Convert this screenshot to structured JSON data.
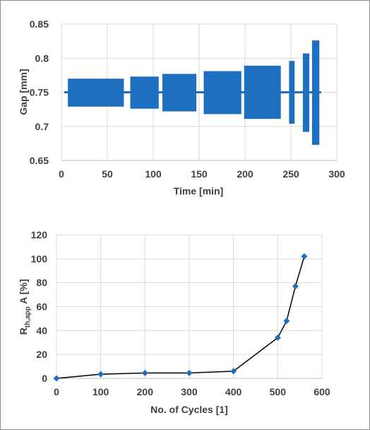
{
  "chart_data": [
    {
      "type": "bar",
      "xlabel": "Time [min]",
      "ylabel": "Gap [mm]",
      "xlim": [
        0,
        300
      ],
      "ylim": [
        0.65,
        0.85
      ],
      "xticks": [
        0,
        50,
        100,
        150,
        200,
        250,
        300
      ],
      "yticks": [
        0.65,
        0.7,
        0.75,
        0.8,
        0.85
      ],
      "ytick_labels": [
        "0.65",
        "0.7",
        "0.75",
        "0.8",
        "0.85"
      ],
      "grid": true,
      "baseline": 0.75,
      "color": "#1f6fc0",
      "blocks": [
        {
          "x_start": 7,
          "x_end": 68,
          "y_min": 0.729,
          "y_max": 0.77
        },
        {
          "x_start": 75,
          "x_end": 106,
          "y_min": 0.726,
          "y_max": 0.773
        },
        {
          "x_start": 110,
          "x_end": 147,
          "y_min": 0.722,
          "y_max": 0.777
        },
        {
          "x_start": 155,
          "x_end": 196,
          "y_min": 0.718,
          "y_max": 0.781
        },
        {
          "x_start": 199,
          "x_end": 239,
          "y_min": 0.711,
          "y_max": 0.789
        },
        {
          "x_start": 248,
          "x_end": 254,
          "y_min": 0.704,
          "y_max": 0.796
        },
        {
          "x_start": 263,
          "x_end": 270,
          "y_min": 0.692,
          "y_max": 0.807
        },
        {
          "x_start": 273,
          "x_end": 281,
          "y_min": 0.673,
          "y_max": 0.826
        }
      ]
    },
    {
      "type": "line",
      "xlabel": "No. of Cycles [1]",
      "ylabel_main": "R",
      "ylabel_sub": "th,app",
      "ylabel_rest": " A [%]",
      "xlim": [
        0,
        600
      ],
      "ylim": [
        0,
        120
      ],
      "xticks": [
        0,
        100,
        200,
        300,
        400,
        500,
        600
      ],
      "yticks": [
        0,
        20,
        40,
        60,
        80,
        100,
        120
      ],
      "grid": true,
      "line_color": "#000000",
      "marker_color": "#1f6fc0",
      "marker": "diamond",
      "x": [
        0,
        100,
        200,
        300,
        400,
        500,
        520,
        540,
        560
      ],
      "y": [
        0,
        3.5,
        4.5,
        4.5,
        6,
        34,
        48,
        77,
        102
      ]
    }
  ]
}
